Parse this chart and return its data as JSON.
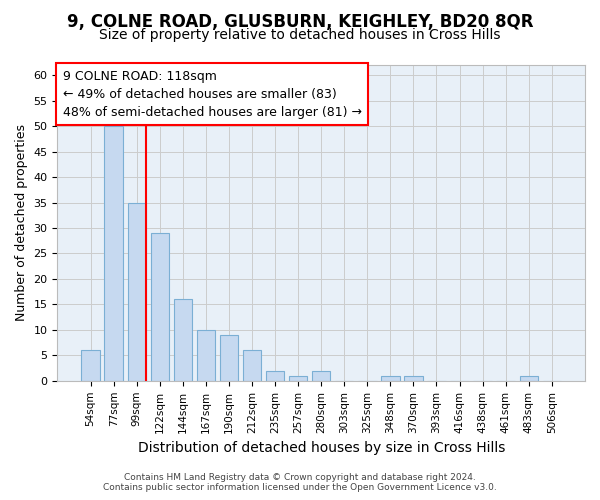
{
  "title": "9, COLNE ROAD, GLUSBURN, KEIGHLEY, BD20 8QR",
  "subtitle": "Size of property relative to detached houses in Cross Hills",
  "xlabel": "Distribution of detached houses by size in Cross Hills",
  "ylabel": "Number of detached properties",
  "bar_labels": [
    "54sqm",
    "77sqm",
    "99sqm",
    "122sqm",
    "144sqm",
    "167sqm",
    "190sqm",
    "212sqm",
    "235sqm",
    "257sqm",
    "280sqm",
    "303sqm",
    "325sqm",
    "348sqm",
    "370sqm",
    "393sqm",
    "416sqm",
    "438sqm",
    "461sqm",
    "483sqm",
    "506sqm"
  ],
  "bar_values": [
    6,
    50,
    35,
    29,
    16,
    10,
    9,
    6,
    2,
    1,
    2,
    0,
    0,
    1,
    1,
    0,
    0,
    0,
    0,
    1,
    0
  ],
  "bar_color": "#c6d9f0",
  "bar_edge_color": "#7BAFD4",
  "vline_color": "red",
  "vline_x_index": 2,
  "annotation_text": "9 COLNE ROAD: 118sqm\n← 49% of detached houses are smaller (83)\n48% of semi-detached houses are larger (81) →",
  "annotation_box_color": "white",
  "annotation_box_edge": "red",
  "ylim": [
    0,
    62
  ],
  "yticks": [
    0,
    5,
    10,
    15,
    20,
    25,
    30,
    35,
    40,
    45,
    50,
    55,
    60
  ],
  "grid_color": "#cccccc",
  "background_color": "#e8f0f8",
  "fig_bg_color": "#ffffff",
  "footer_line1": "Contains HM Land Registry data © Crown copyright and database right 2024.",
  "footer_line2": "Contains public sector information licensed under the Open Government Licence v3.0.",
  "title_fontsize": 12,
  "subtitle_fontsize": 10,
  "xlabel_fontsize": 10,
  "ylabel_fontsize": 9,
  "annotation_fontsize": 9
}
